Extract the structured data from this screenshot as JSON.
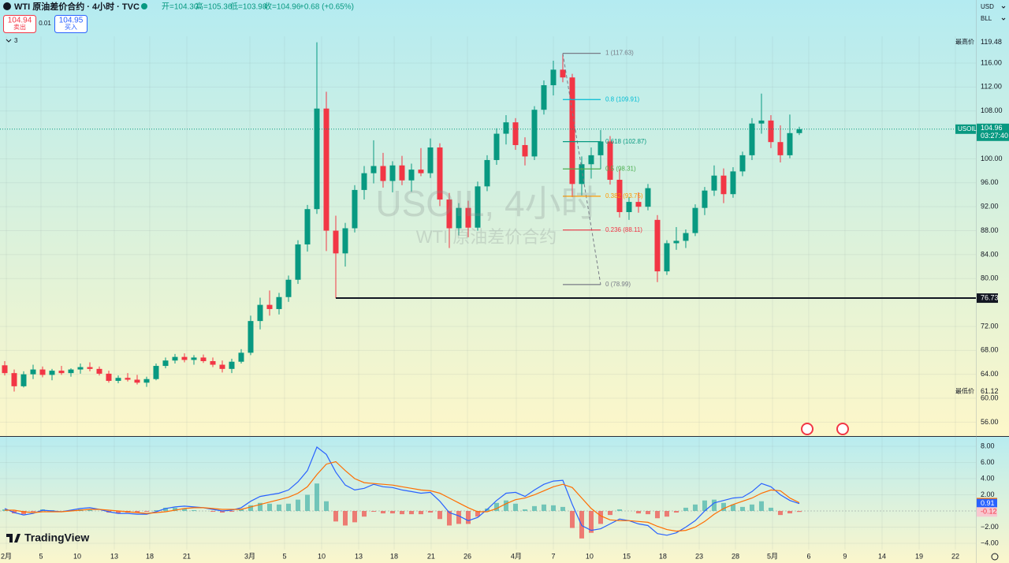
{
  "header": {
    "symbol": "WTI 原油差价合约 · 4小时 · TVC",
    "open": "开=104.30",
    "high": "高=105.36",
    "low": "低=103.98",
    "close": "收=104.96",
    "change": "+0.68 (+0.65%)",
    "sell_price": "104.94",
    "sell_label": "卖出",
    "spread": "0.01",
    "buy_price": "104.95",
    "buy_label": "买入",
    "indicator_count": "3",
    "currency": "USD",
    "unit": "BLL"
  },
  "watermark": {
    "line1": "USOIL, 4小时",
    "line2": "WTI 原油差价合约"
  },
  "logo": "TradingView",
  "chart_data": [
    {
      "type": "candlestick",
      "up_color": "#089981",
      "down_color": "#f23645",
      "grid": true,
      "xlim": [
        -0.5,
        102.67
      ],
      "xticks": [
        {
          "value": 0.17,
          "label": "2月"
        },
        {
          "value": 3.83,
          "label": "5"
        },
        {
          "value": 7.67,
          "label": "10"
        },
        {
          "value": 11.58,
          "label": "13"
        },
        {
          "value": 15.33,
          "label": "18"
        },
        {
          "value": 19.25,
          "label": "21"
        },
        {
          "value": 25.92,
          "label": "3月"
        },
        {
          "value": 29.58,
          "label": "5"
        },
        {
          "value": 33.5,
          "label": "10"
        },
        {
          "value": 37.42,
          "label": "13"
        },
        {
          "value": 41.17,
          "label": "18"
        },
        {
          "value": 45.08,
          "label": "21"
        },
        {
          "value": 48.92,
          "label": "26"
        },
        {
          "value": 54.08,
          "label": "4月"
        },
        {
          "value": 58,
          "label": "7"
        },
        {
          "value": 61.83,
          "label": "10"
        },
        {
          "value": 65.75,
          "label": "15"
        },
        {
          "value": 69.58,
          "label": "18"
        },
        {
          "value": 73.42,
          "label": "23"
        },
        {
          "value": 77.25,
          "label": "28"
        },
        {
          "value": 81.17,
          "label": "5月"
        },
        {
          "value": 85,
          "label": "6"
        },
        {
          "value": 88.83,
          "label": "9"
        },
        {
          "value": 92.75,
          "label": "14"
        },
        {
          "value": 96.67,
          "label": "19"
        },
        {
          "value": 100.5,
          "label": "22"
        }
      ],
      "ylim": [
        53.68,
        120.48
      ],
      "yticks": [
        {
          "value": 56,
          "label": "56.00"
        },
        {
          "value": 60,
          "label": "60.00"
        },
        {
          "value": 64,
          "label": "64.00"
        },
        {
          "value": 68,
          "label": "68.00"
        },
        {
          "value": 72,
          "label": "72.00"
        },
        {
          "value": 80,
          "label": "80.00"
        },
        {
          "value": 84,
          "label": "84.00"
        },
        {
          "value": 88,
          "label": "88.00"
        },
        {
          "value": 92,
          "label": "92.00"
        },
        {
          "value": 96,
          "label": "96.00"
        },
        {
          "value": 100,
          "label": "100.00"
        },
        {
          "value": 108,
          "label": "108.00"
        },
        {
          "value": 112,
          "label": "112.00"
        },
        {
          "value": 116,
          "label": "116.00"
        }
      ],
      "ohlc": [
        [
          65.5,
          66.2,
          63.8,
          64.2
        ],
        [
          64.2,
          64.8,
          61.12,
          62.0
        ],
        [
          62.0,
          64.5,
          61.8,
          64.0
        ],
        [
          64.0,
          65.6,
          63.2,
          64.8
        ],
        [
          64.8,
          65.3,
          63.5,
          63.9
        ],
        [
          63.9,
          64.9,
          63.0,
          64.6
        ],
        [
          64.6,
          65.4,
          63.9,
          64.2
        ],
        [
          64.2,
          65.0,
          63.6,
          64.8
        ],
        [
          64.8,
          65.8,
          64.1,
          65.2
        ],
        [
          65.2,
          66.0,
          64.5,
          64.9
        ],
        [
          64.9,
          65.3,
          63.8,
          64.1
        ],
        [
          64.1,
          64.6,
          62.6,
          62.9
        ],
        [
          62.9,
          63.8,
          62.5,
          63.4
        ],
        [
          63.4,
          64.2,
          62.8,
          63.1
        ],
        [
          63.1,
          63.9,
          62.3,
          62.6
        ],
        [
          62.6,
          63.6,
          61.9,
          63.2
        ],
        [
          63.2,
          65.8,
          63.0,
          65.4
        ],
        [
          65.4,
          66.8,
          65.0,
          66.3
        ],
        [
          66.3,
          67.4,
          65.8,
          66.9
        ],
        [
          66.9,
          67.5,
          66.0,
          66.4
        ],
        [
          66.4,
          67.2,
          65.6,
          66.8
        ],
        [
          66.8,
          67.3,
          65.9,
          66.2
        ],
        [
          66.2,
          66.8,
          65.2,
          65.6
        ],
        [
          65.6,
          66.3,
          64.3,
          64.9
        ],
        [
          64.9,
          66.6,
          64.2,
          66.1
        ],
        [
          66.1,
          68.2,
          65.8,
          67.6
        ],
        [
          67.6,
          73.8,
          67.2,
          72.9
        ],
        [
          72.9,
          76.8,
          71.5,
          75.6
        ],
        [
          75.6,
          78.0,
          73.8,
          74.9
        ],
        [
          74.9,
          77.6,
          74.0,
          76.9
        ],
        [
          76.9,
          80.5,
          76.1,
          79.8
        ],
        [
          79.8,
          86.4,
          79.1,
          85.7
        ],
        [
          85.7,
          92.3,
          84.5,
          91.6
        ],
        [
          91.6,
          119.48,
          90.8,
          108.4
        ],
        [
          108.4,
          111.2,
          84.6,
          88.0
        ],
        [
          88.0,
          90.5,
          76.73,
          84.2
        ],
        [
          84.2,
          89.3,
          82.0,
          88.4
        ],
        [
          88.4,
          95.6,
          87.7,
          94.8
        ],
        [
          94.8,
          98.8,
          93.2,
          97.6
        ],
        [
          97.6,
          103.1,
          95.9,
          98.8
        ],
        [
          98.8,
          101.0,
          95.2,
          96.3
        ],
        [
          96.3,
          99.6,
          94.4,
          98.9
        ],
        [
          98.9,
          100.5,
          95.6,
          96.4
        ],
        [
          96.4,
          99.2,
          94.5,
          98.2
        ],
        [
          98.2,
          101.8,
          97.1,
          97.6
        ],
        [
          97.6,
          103.4,
          96.8,
          101.9
        ],
        [
          101.9,
          102.6,
          92.1,
          93.2
        ],
        [
          93.2,
          94.3,
          85.1,
          88.4
        ],
        [
          88.4,
          92.6,
          87.2,
          91.8
        ],
        [
          91.8,
          93.0,
          86.9,
          88.5
        ],
        [
          88.5,
          96.2,
          88.0,
          95.4
        ],
        [
          95.4,
          100.6,
          94.6,
          99.8
        ],
        [
          99.8,
          105.1,
          99.0,
          104.2
        ],
        [
          104.2,
          107.3,
          102.4,
          106.1
        ],
        [
          106.1,
          106.8,
          101.5,
          102.3
        ],
        [
          102.3,
          103.6,
          98.9,
          100.4
        ],
        [
          100.4,
          108.8,
          99.8,
          108.2
        ],
        [
          108.2,
          113.1,
          107.4,
          112.3
        ],
        [
          112.3,
          116.4,
          110.6,
          114.9
        ],
        [
          114.9,
          117.63,
          112.8,
          113.6
        ],
        [
          113.6,
          114.2,
          93.6,
          95.8
        ],
        [
          95.8,
          100.4,
          93.9,
          99.1
        ],
        [
          99.1,
          101.9,
          96.7,
          100.6
        ],
        [
          100.6,
          104.8,
          98.3,
          102.9
        ],
        [
          102.9,
          103.8,
          95.7,
          96.5
        ],
        [
          96.5,
          98.2,
          90.2,
          91.1
        ],
        [
          91.1,
          93.6,
          89.8,
          92.8
        ],
        [
          92.8,
          94.4,
          91.0,
          92.0
        ],
        [
          92.0,
          95.8,
          91.4,
          95.1
        ],
        [
          89.8,
          90.6,
          79.4,
          81.2
        ],
        [
          81.2,
          86.4,
          80.6,
          85.9
        ],
        [
          85.9,
          88.6,
          84.8,
          86.3
        ],
        [
          86.3,
          88.2,
          85.1,
          87.6
        ],
        [
          87.6,
          92.4,
          87.1,
          91.8
        ],
        [
          91.8,
          95.3,
          90.6,
          94.7
        ],
        [
          94.7,
          98.9,
          93.8,
          97.2
        ],
        [
          97.2,
          98.4,
          92.6,
          94.1
        ],
        [
          94.1,
          98.6,
          93.5,
          97.9
        ],
        [
          97.9,
          101.2,
          97.1,
          100.6
        ],
        [
          100.6,
          106.8,
          99.8,
          105.9
        ],
        [
          105.9,
          110.9,
          104.2,
          106.4
        ],
        [
          106.4,
          107.3,
          101.8,
          102.8
        ],
        [
          102.8,
          105.6,
          99.4,
          100.6
        ],
        [
          100.6,
          107.4,
          100.1,
          104.3
        ],
        [
          104.3,
          105.36,
          103.98,
          104.96
        ]
      ],
      "price_labels": [
        {
          "name": "最高价",
          "value": 119.48
        },
        {
          "name": "最低价",
          "value": 61.12
        }
      ],
      "last": {
        "name": "USOIL",
        "value": 104.96,
        "countdown": "03:27:40",
        "color": "#089981"
      },
      "hline": {
        "value": 76.73,
        "color": "#131722"
      },
      "fib": [
        {
          "label": "1 (117.63)",
          "value": 117.63,
          "color": "#787b86"
        },
        {
          "label": "0.8 (109.91)",
          "value": 109.91,
          "color": "#00bcd4"
        },
        {
          "label": "0.618 (102.87)",
          "value": 102.87,
          "color": "#089981"
        },
        {
          "label": "0.5 (98.31)",
          "value": 98.31,
          "color": "#4caf50"
        },
        {
          "label": "0.382 (93.75)",
          "value": 93.75,
          "color": "#ff9800"
        },
        {
          "label": "0.236 (88.11)",
          "value": 88.11,
          "color": "#f23645"
        },
        {
          "label": "0 (78.99)",
          "value": 78.99,
          "color": "#787b86"
        }
      ]
    },
    {
      "type": "macd",
      "ylim": [
        -4.78,
        9.27
      ],
      "yticks": [
        {
          "value": 8,
          "label": "8.00"
        },
        {
          "value": 6,
          "label": "6.00"
        },
        {
          "value": 4,
          "label": "4.00"
        },
        {
          "value": 2,
          "label": "2.00"
        },
        {
          "value": -2,
          "label": "−2.00"
        },
        {
          "value": -4,
          "label": "−4.00"
        }
      ],
      "series": [
        {
          "kind": "histogram",
          "color": "#4db6ac",
          "negative_color": "#ef5350",
          "values": [
            0.2,
            -0.3,
            -0.4,
            -0.1,
            0.2,
            0.1,
            0.0,
            0.1,
            0.2,
            0.2,
            0.0,
            -0.2,
            -0.3,
            -0.2,
            -0.2,
            -0.1,
            0.1,
            0.4,
            0.4,
            0.3,
            0.1,
            0.0,
            -0.1,
            -0.2,
            -0.1,
            0.2,
            0.7,
            1.0,
            0.9,
            0.8,
            0.9,
            1.4,
            2.0,
            3.4,
            1.2,
            -1.3,
            -1.8,
            -1.4,
            -0.7,
            -0.1,
            -0.3,
            -0.3,
            -0.4,
            -0.4,
            -0.4,
            -0.2,
            -1.0,
            -1.8,
            -1.6,
            -1.6,
            -0.7,
            0.3,
            1.0,
            1.3,
            0.9,
            0.2,
            0.6,
            0.8,
            0.7,
            0.5,
            -2.1,
            -3.4,
            -2.7,
            -1.6,
            -0.5,
            0.2,
            0.0,
            -0.3,
            -0.4,
            -0.9,
            -0.7,
            -0.2,
            0.4,
            0.8,
            1.3,
            1.4,
            1.0,
            0.8,
            0.5,
            0.8,
            1.2,
            0.4,
            -0.5,
            -0.3,
            -0.12
          ]
        },
        {
          "kind": "line",
          "color": "#2962ff",
          "values": [
            0.3,
            -0.2,
            -0.5,
            -0.3,
            0.1,
            0.0,
            -0.1,
            0.1,
            0.3,
            0.4,
            0.2,
            -0.1,
            -0.3,
            -0.3,
            -0.4,
            -0.4,
            -0.1,
            0.3,
            0.5,
            0.6,
            0.5,
            0.4,
            0.2,
            0.0,
            0.1,
            0.4,
            1.2,
            1.8,
            2.0,
            2.2,
            2.6,
            3.6,
            5.0,
            7.9,
            7.0,
            4.8,
            3.2,
            2.6,
            2.8,
            3.3,
            3.0,
            2.9,
            2.6,
            2.4,
            2.2,
            2.3,
            1.2,
            -0.2,
            -0.6,
            -1.2,
            -0.8,
            0.2,
            1.3,
            2.2,
            2.3,
            1.8,
            2.6,
            3.3,
            3.7,
            3.8,
            0.8,
            -1.8,
            -2.4,
            -2.2,
            -1.6,
            -1.0,
            -1.2,
            -1.6,
            -1.8,
            -2.8,
            -3.0,
            -2.7,
            -2.0,
            -1.2,
            0.0,
            1.0,
            1.3,
            1.6,
            1.7,
            2.4,
            3.4,
            3.0,
            2.0,
            1.3,
            0.91
          ]
        },
        {
          "kind": "line",
          "color": "#ff6d00",
          "values": [
            0.1,
            0.1,
            -0.1,
            -0.2,
            -0.1,
            -0.1,
            -0.1,
            0.0,
            0.1,
            0.2,
            0.2,
            0.1,
            0.0,
            -0.1,
            -0.2,
            -0.3,
            -0.2,
            -0.1,
            0.1,
            0.3,
            0.4,
            0.4,
            0.3,
            0.2,
            0.2,
            0.2,
            0.5,
            0.8,
            1.1,
            1.4,
            1.7,
            2.2,
            3.0,
            4.5,
            5.8,
            6.1,
            5.0,
            4.0,
            3.5,
            3.4,
            3.3,
            3.2,
            3.0,
            2.8,
            2.6,
            2.5,
            2.2,
            1.6,
            1.0,
            0.4,
            -0.1,
            -0.1,
            0.3,
            0.9,
            1.4,
            1.6,
            2.0,
            2.5,
            3.0,
            3.3,
            2.9,
            1.6,
            0.3,
            -0.6,
            -1.1,
            -1.2,
            -1.2,
            -1.3,
            -1.4,
            -1.9,
            -2.3,
            -2.5,
            -2.4,
            -2.0,
            -1.3,
            -0.4,
            0.3,
            0.8,
            1.2,
            1.6,
            2.2,
            2.6,
            2.5,
            1.6,
            1.03
          ]
        }
      ]
    }
  ]
}
